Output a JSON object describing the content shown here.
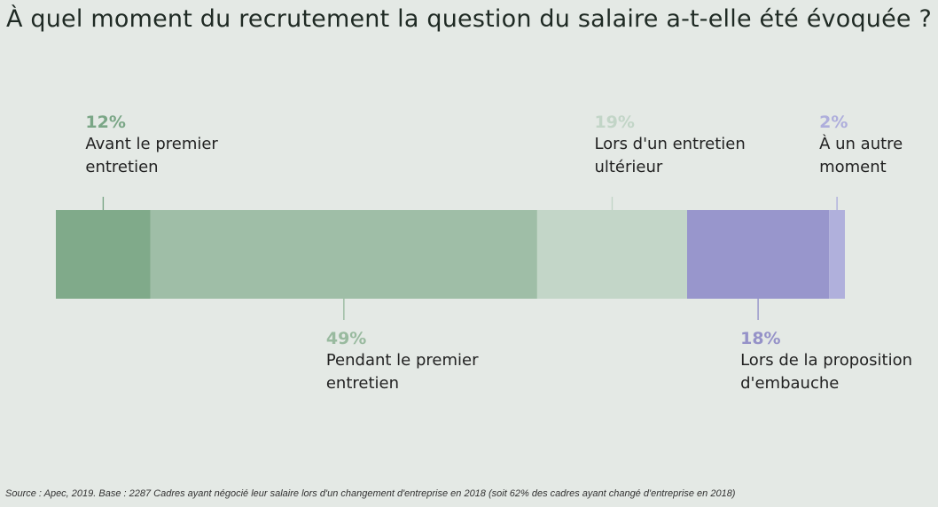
{
  "title": "À quel moment du recrutement la question du salaire a-t-elle été évoquée ?",
  "source": "Source : Apec, 2019. Base : 2287 Cadres ayant négocié leur salaire lors d'un changement d'entreprise en 2018 (soit 62% des cadres ayant changé d'entreprise en 2018)",
  "chart_data": {
    "type": "bar",
    "orientation": "horizontal-stacked-100",
    "title": "À quel moment du recrutement la question du salaire a-t-elle été évoquée ?",
    "xlim": [
      0,
      100
    ],
    "grid": false,
    "legend": "none",
    "segments": [
      {
        "label": "Avant le premier\nentretien",
        "value": 12,
        "value_label": "12%",
        "color": "#80aa8a",
        "text_color": "#7aa686",
        "label_side": "top"
      },
      {
        "label": "Pendant le premier\nentretien",
        "value": 49,
        "value_label": "49%",
        "color": "#9fbea7",
        "text_color": "#99ba9f",
        "label_side": "bottom"
      },
      {
        "label": "Lors d'un entretien\nultérieur",
        "value": 19,
        "value_label": "19%",
        "color": "#c3d6c8",
        "text_color": "#c2d5c7",
        "label_side": "top"
      },
      {
        "label": "Lors de la proposition\nd'embauche",
        "value": 18,
        "value_label": "18%",
        "color": "#9896cc",
        "text_color": "#9592c8",
        "label_side": "bottom"
      },
      {
        "label": "À un autre\nmoment",
        "value": 2,
        "value_label": "2%",
        "color": "#b0b0dc",
        "text_color": "#aeaedc",
        "label_side": "top"
      }
    ]
  }
}
